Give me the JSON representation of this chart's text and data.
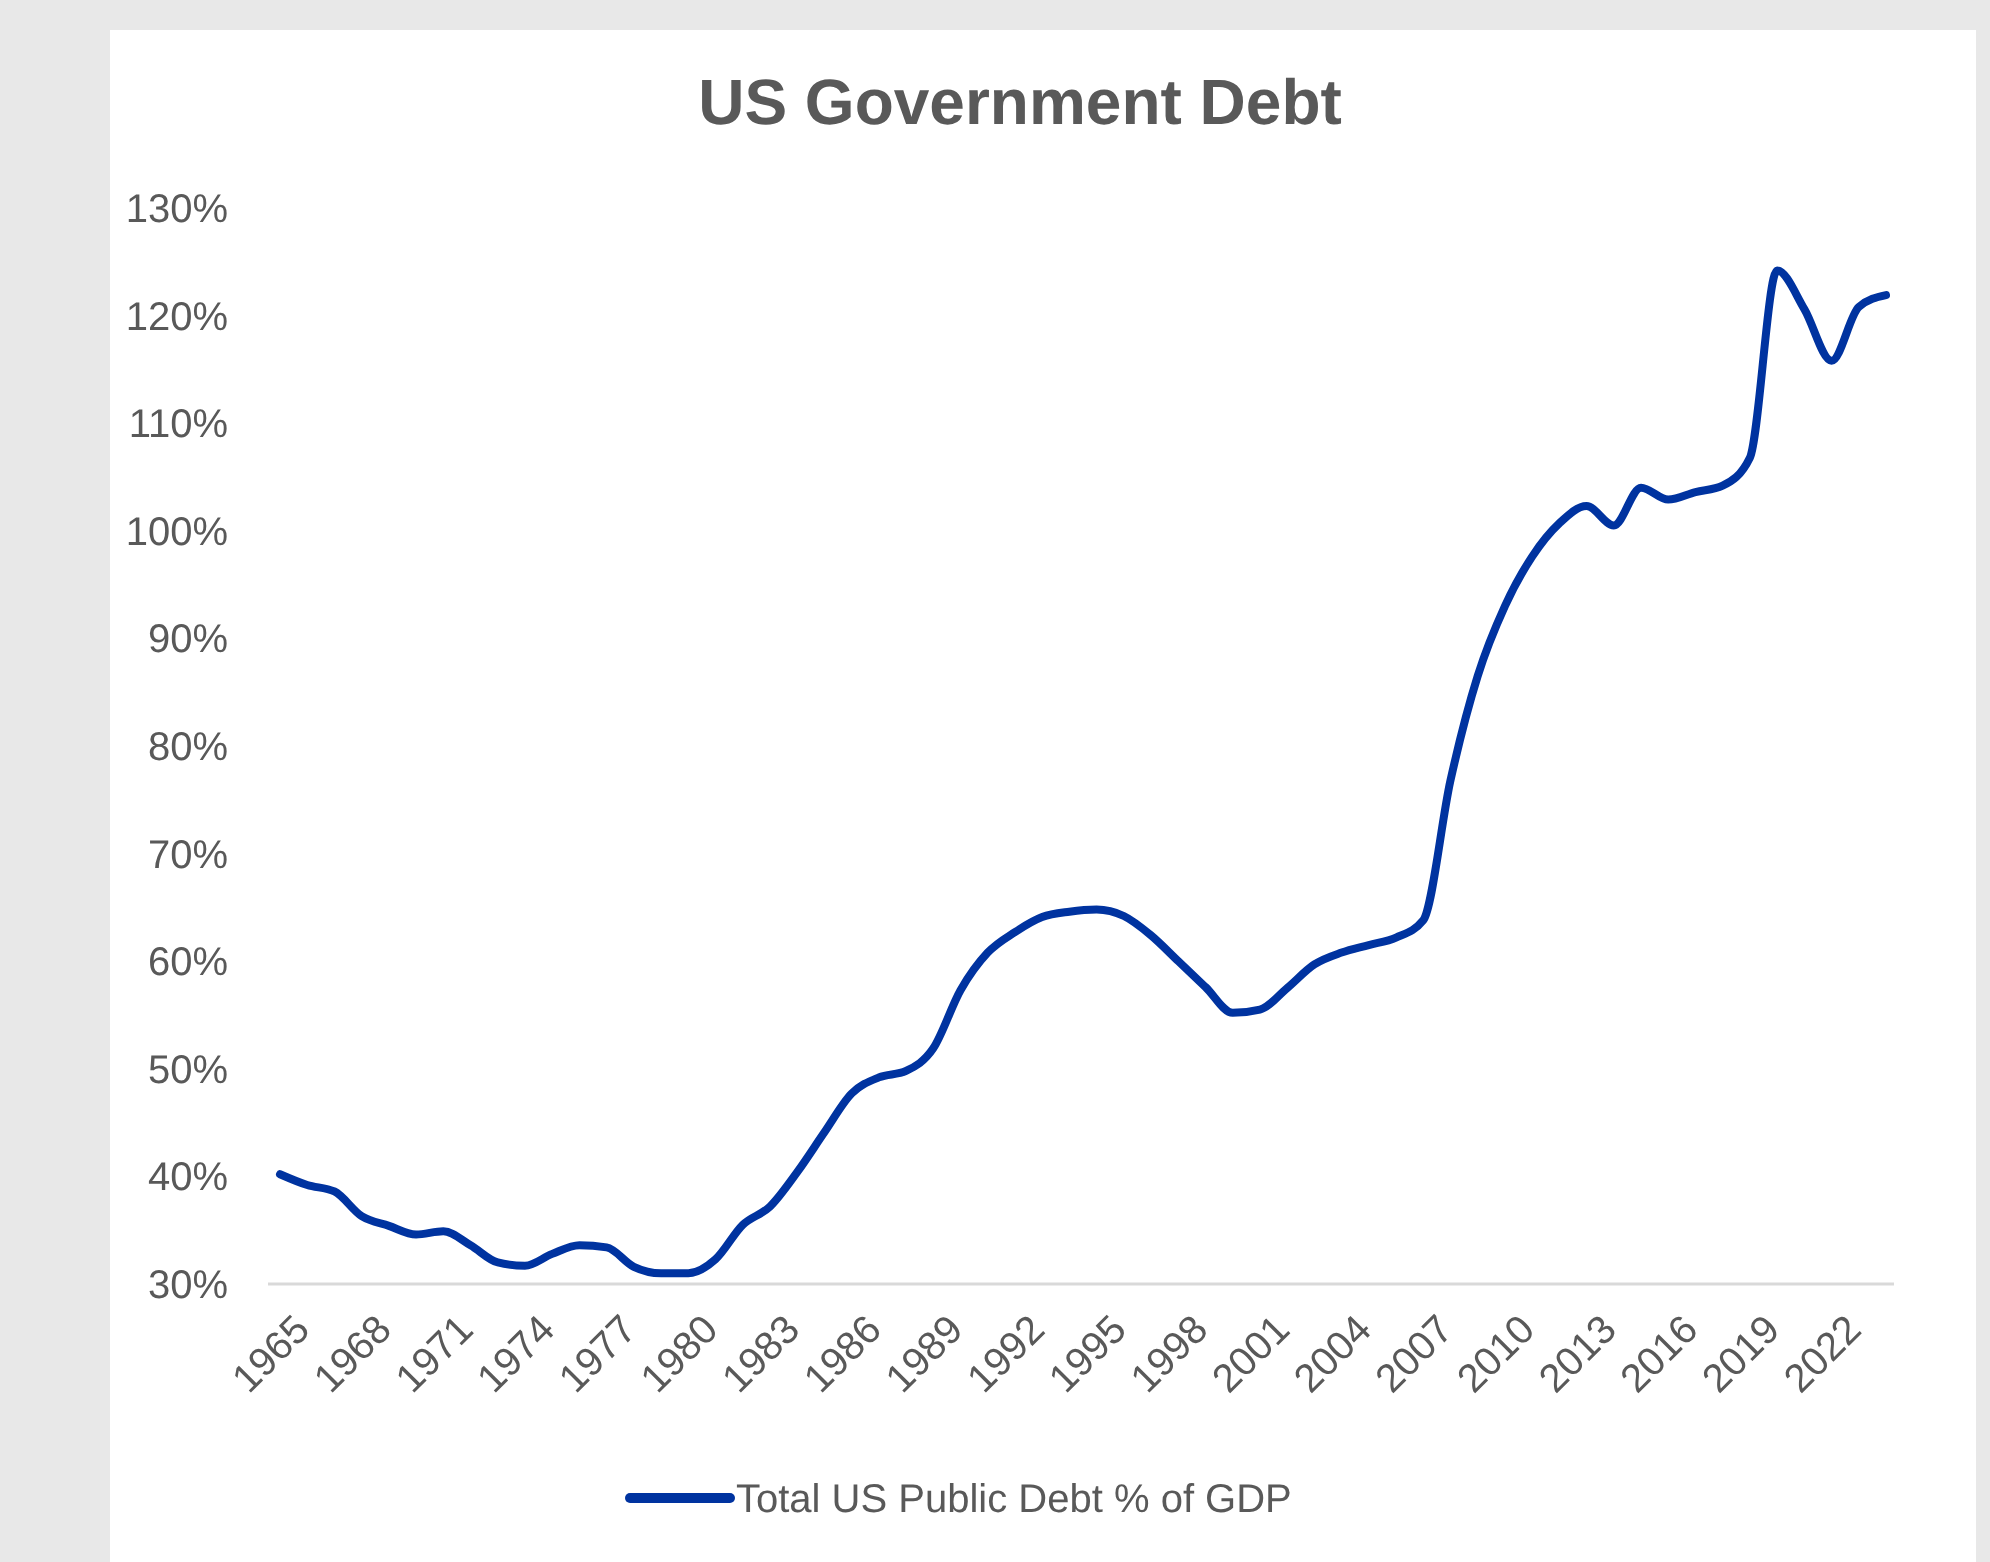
{
  "chart_data": {
    "type": "line",
    "title": "US Government Debt",
    "categories": [
      "1965",
      null,
      null,
      "1968",
      null,
      null,
      "1971",
      null,
      null,
      "1974",
      null,
      null,
      "1977",
      null,
      null,
      "1980",
      null,
      null,
      "1983",
      null,
      null,
      "1986",
      null,
      null,
      "1989",
      null,
      null,
      "1992",
      null,
      null,
      "1995",
      null,
      null,
      "1998",
      null,
      null,
      "2001",
      null,
      null,
      "2004",
      null,
      null,
      "2007",
      null,
      null,
      "2010",
      null,
      null,
      "2013",
      null,
      null,
      "2016",
      null,
      null,
      "2019",
      null,
      null,
      "2022",
      null,
      null
    ],
    "series": [
      {
        "name": "Total US Public Debt % of GDP",
        "color": "#0033a0",
        "values": [
          40.2,
          39.2,
          38.6,
          36.3,
          35.4,
          34.6,
          34.9,
          33.6,
          32.0,
          31.7,
          32.8,
          33.6,
          33.4,
          31.6,
          31.0,
          31.0,
          32.3,
          35.5,
          37.2,
          40.4,
          44.1,
          47.7,
          49.2,
          49.8,
          51.9,
          57.3,
          60.8,
          62.7,
          64.1,
          64.6,
          64.8,
          64.2,
          62.4,
          60.0,
          57.6,
          55.2,
          55.5,
          57.5,
          59.7,
          60.8,
          61.5,
          62.2,
          63.8,
          76.8,
          86.5,
          93.0,
          97.6,
          100.7,
          102.3,
          100.5,
          104.0,
          102.9,
          103.6,
          104.2,
          106.8,
          124.2,
          120.6,
          115.8,
          120.8,
          121.9
        ]
      }
    ],
    "ylim": [
      30,
      130
    ],
    "yticks": [
      {
        "value": 30,
        "label": "30%"
      },
      {
        "value": 40,
        "label": "40%"
      },
      {
        "value": 50,
        "label": "50%"
      },
      {
        "value": 60,
        "label": "60%"
      },
      {
        "value": 70,
        "label": "70%"
      },
      {
        "value": 80,
        "label": "80%"
      },
      {
        "value": 90,
        "label": "90%"
      },
      {
        "value": 100,
        "label": "100%"
      },
      {
        "value": 110,
        "label": "110%"
      },
      {
        "value": 120,
        "label": "120%"
      },
      {
        "value": 130,
        "label": "130%"
      }
    ],
    "grid": false,
    "legend": "bottom",
    "marker": "none",
    "line_style": "solid"
  }
}
